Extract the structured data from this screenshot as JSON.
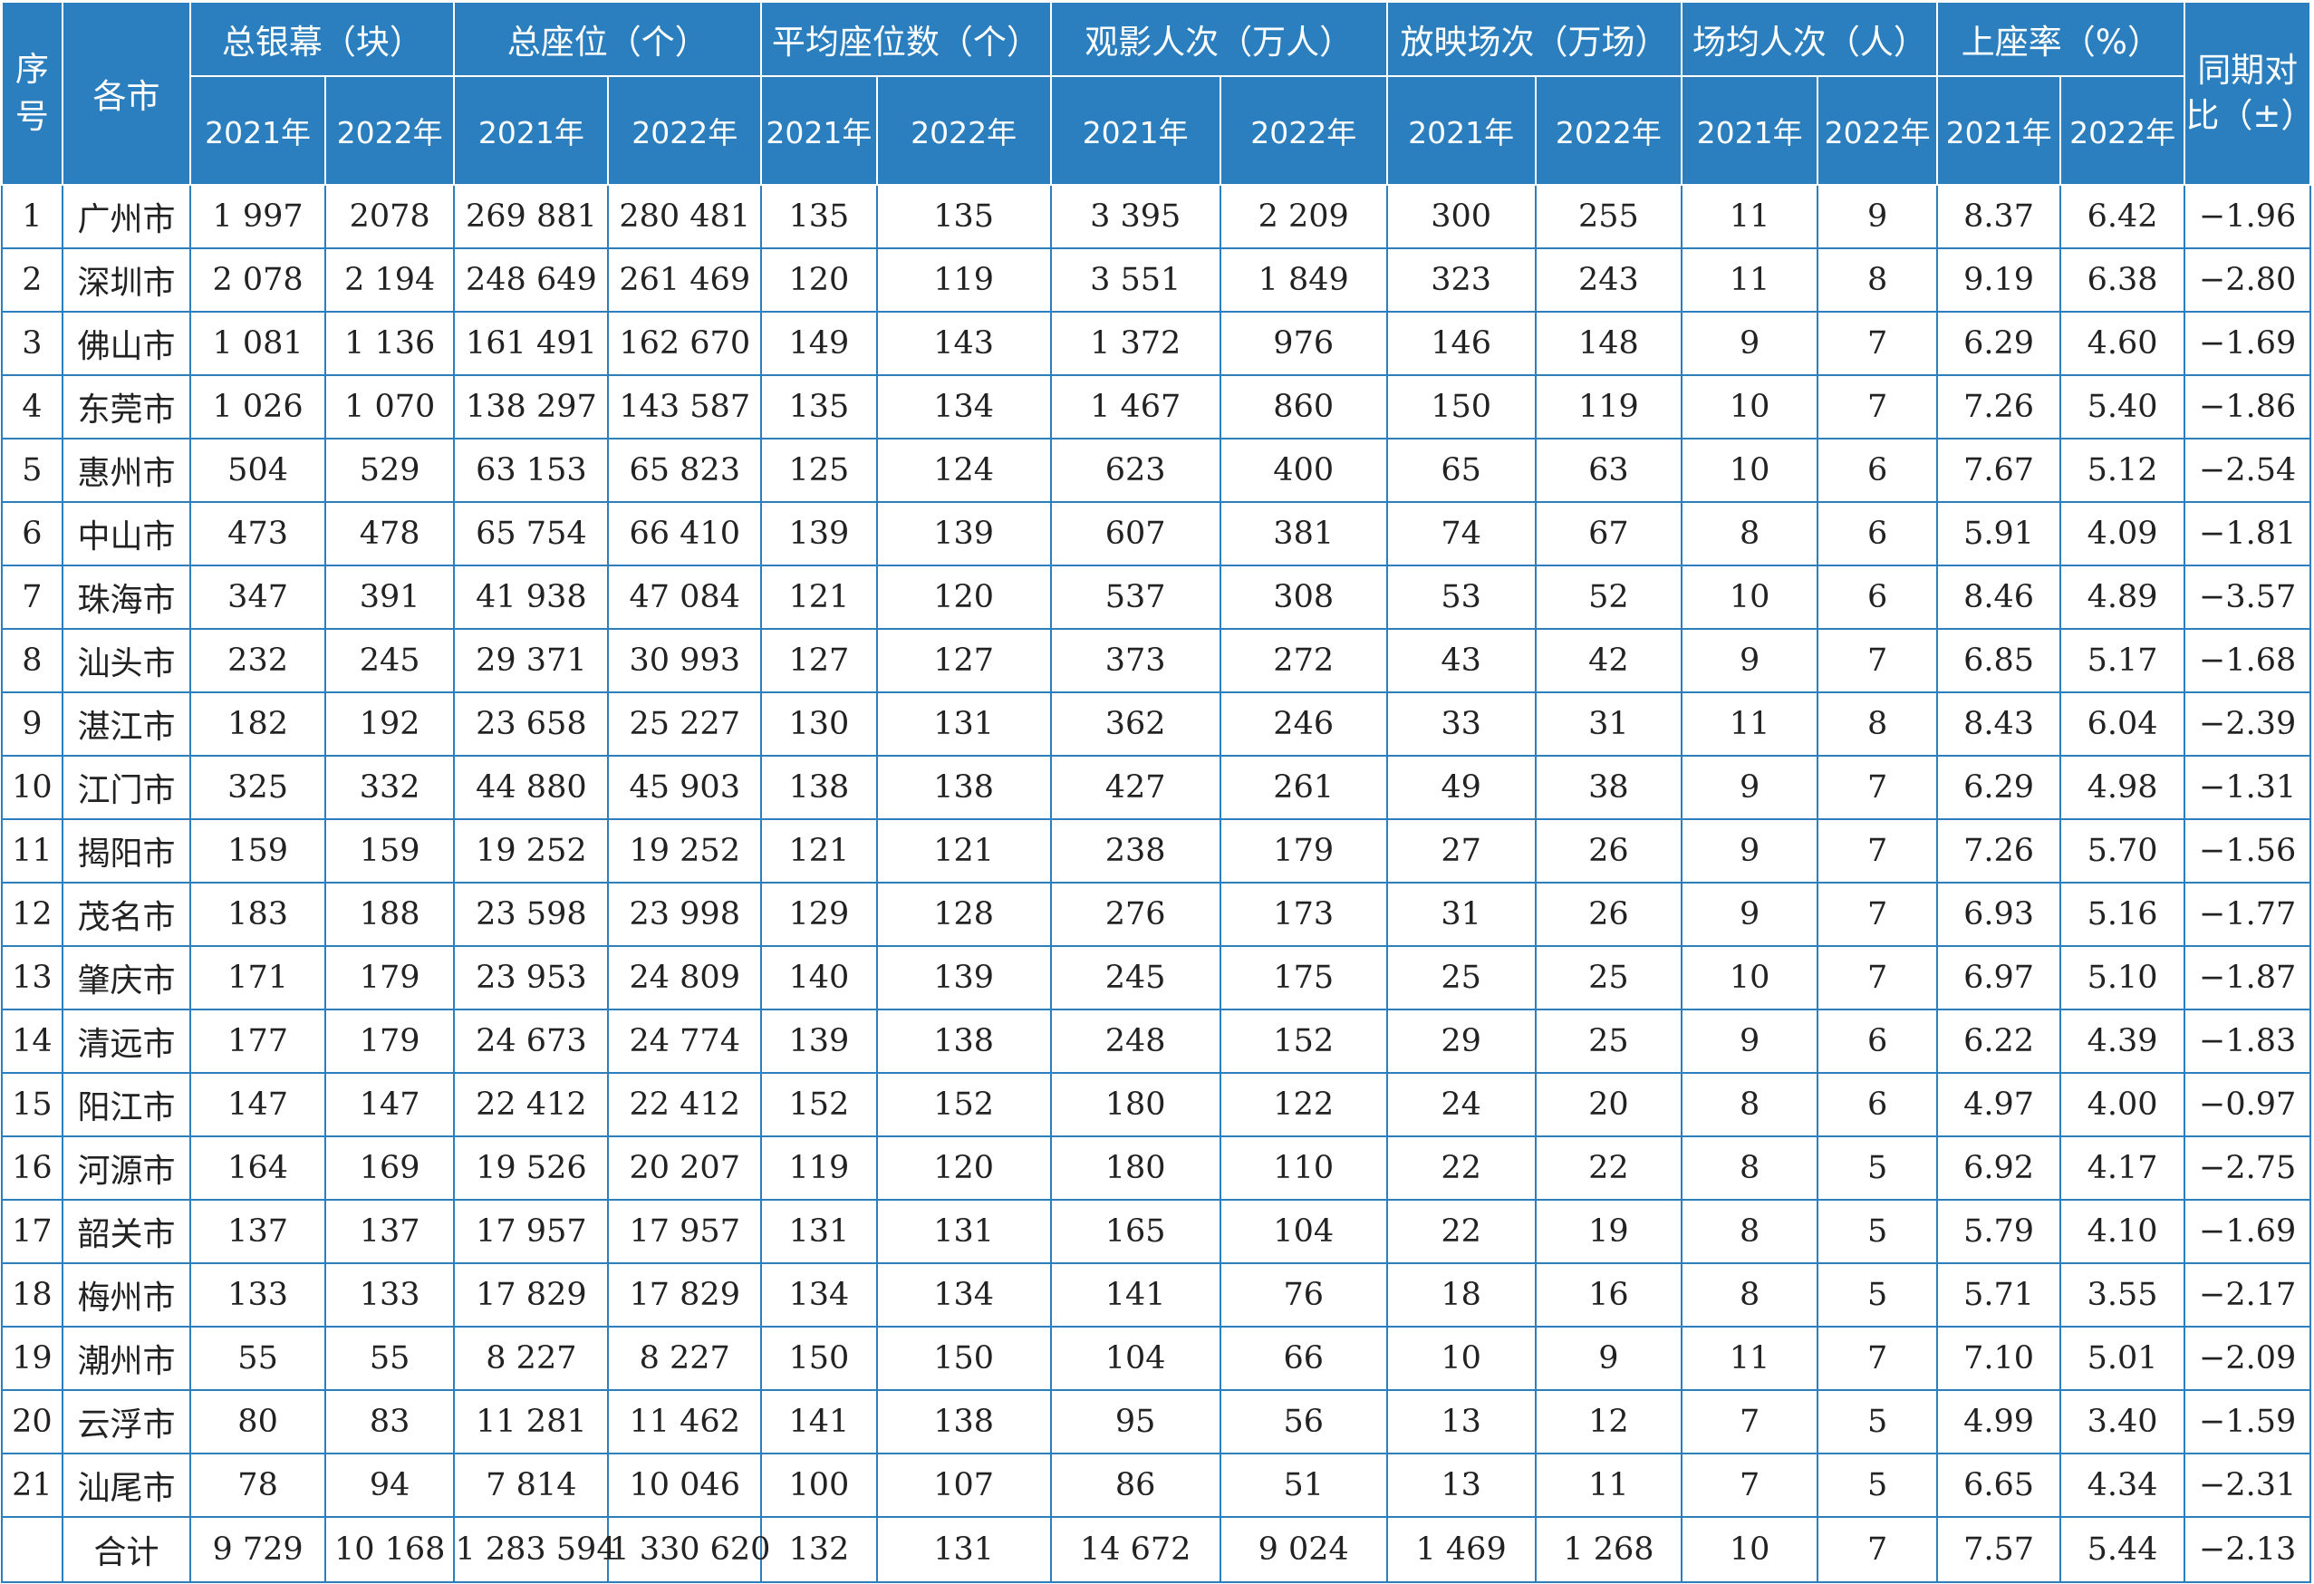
{
  "headers": {
    "seq": "序号",
    "city": "各市",
    "groups": [
      "总银幕（块）",
      "总座位（个）",
      "平均座位数（个）",
      "观影人次（万人）",
      "放映场次（万场）",
      "场均人次（人）",
      "上座率（%）"
    ],
    "year_2021": "2021年",
    "year_2022": "2022年",
    "yoy": "同期对比（±）"
  },
  "rows": [
    [
      "1",
      "广州市",
      "1 997",
      "2078",
      "269 881",
      "280 481",
      "135",
      "135",
      "3 395",
      "2 209",
      "300",
      "255",
      "11",
      "9",
      "8.37",
      "6.42",
      "−1.96"
    ],
    [
      "2",
      "深圳市",
      "2 078",
      "2 194",
      "248 649",
      "261 469",
      "120",
      "119",
      "3 551",
      "1 849",
      "323",
      "243",
      "11",
      "8",
      "9.19",
      "6.38",
      "−2.80"
    ],
    [
      "3",
      "佛山市",
      "1 081",
      "1 136",
      "161 491",
      "162 670",
      "149",
      "143",
      "1 372",
      "976",
      "146",
      "148",
      "9",
      "7",
      "6.29",
      "4.60",
      "−1.69"
    ],
    [
      "4",
      "东莞市",
      "1 026",
      "1 070",
      "138 297",
      "143 587",
      "135",
      "134",
      "1 467",
      "860",
      "150",
      "119",
      "10",
      "7",
      "7.26",
      "5.40",
      "−1.86"
    ],
    [
      "5",
      "惠州市",
      "504",
      "529",
      "63 153",
      "65 823",
      "125",
      "124",
      "623",
      "400",
      "65",
      "63",
      "10",
      "6",
      "7.67",
      "5.12",
      "−2.54"
    ],
    [
      "6",
      "中山市",
      "473",
      "478",
      "65 754",
      "66 410",
      "139",
      "139",
      "607",
      "381",
      "74",
      "67",
      "8",
      "6",
      "5.91",
      "4.09",
      "−1.81"
    ],
    [
      "7",
      "珠海市",
      "347",
      "391",
      "41 938",
      "47 084",
      "121",
      "120",
      "537",
      "308",
      "53",
      "52",
      "10",
      "6",
      "8.46",
      "4.89",
      "−3.57"
    ],
    [
      "8",
      "汕头市",
      "232",
      "245",
      "29 371",
      "30 993",
      "127",
      "127",
      "373",
      "272",
      "43",
      "42",
      "9",
      "7",
      "6.85",
      "5.17",
      "−1.68"
    ],
    [
      "9",
      "湛江市",
      "182",
      "192",
      "23 658",
      "25 227",
      "130",
      "131",
      "362",
      "246",
      "33",
      "31",
      "11",
      "8",
      "8.43",
      "6.04",
      "−2.39"
    ],
    [
      "10",
      "江门市",
      "325",
      "332",
      "44 880",
      "45 903",
      "138",
      "138",
      "427",
      "261",
      "49",
      "38",
      "9",
      "7",
      "6.29",
      "4.98",
      "−1.31"
    ],
    [
      "11",
      "揭阳市",
      "159",
      "159",
      "19 252",
      "19 252",
      "121",
      "121",
      "238",
      "179",
      "27",
      "26",
      "9",
      "7",
      "7.26",
      "5.70",
      "−1.56"
    ],
    [
      "12",
      "茂名市",
      "183",
      "188",
      "23 598",
      "23 998",
      "129",
      "128",
      "276",
      "173",
      "31",
      "26",
      "9",
      "7",
      "6.93",
      "5.16",
      "−1.77"
    ],
    [
      "13",
      "肇庆市",
      "171",
      "179",
      "23 953",
      "24 809",
      "140",
      "139",
      "245",
      "175",
      "25",
      "25",
      "10",
      "7",
      "6.97",
      "5.10",
      "−1.87"
    ],
    [
      "14",
      "清远市",
      "177",
      "179",
      "24 673",
      "24 774",
      "139",
      "138",
      "248",
      "152",
      "29",
      "25",
      "9",
      "6",
      "6.22",
      "4.39",
      "−1.83"
    ],
    [
      "15",
      "阳江市",
      "147",
      "147",
      "22 412",
      "22 412",
      "152",
      "152",
      "180",
      "122",
      "24",
      "20",
      "8",
      "6",
      "4.97",
      "4.00",
      "−0.97"
    ],
    [
      "16",
      "河源市",
      "164",
      "169",
      "19 526",
      "20 207",
      "119",
      "120",
      "180",
      "110",
      "22",
      "22",
      "8",
      "5",
      "6.92",
      "4.17",
      "−2.75"
    ],
    [
      "17",
      "韶关市",
      "137",
      "137",
      "17 957",
      "17 957",
      "131",
      "131",
      "165",
      "104",
      "22",
      "19",
      "8",
      "5",
      "5.79",
      "4.10",
      "−1.69"
    ],
    [
      "18",
      "梅州市",
      "133",
      "133",
      "17 829",
      "17 829",
      "134",
      "134",
      "141",
      "76",
      "18",
      "16",
      "8",
      "5",
      "5.71",
      "3.55",
      "−2.17"
    ],
    [
      "19",
      "潮州市",
      "55",
      "55",
      "8 227",
      "8 227",
      "150",
      "150",
      "104",
      "66",
      "10",
      "9",
      "11",
      "7",
      "7.10",
      "5.01",
      "−2.09"
    ],
    [
      "20",
      "云浮市",
      "80",
      "83",
      "11 281",
      "11 462",
      "141",
      "138",
      "95",
      "56",
      "13",
      "12",
      "7",
      "5",
      "4.99",
      "3.40",
      "−1.59"
    ],
    [
      "21",
      "汕尾市",
      "78",
      "94",
      "7 814",
      "10 046",
      "100",
      "107",
      "86",
      "51",
      "13",
      "11",
      "7",
      "5",
      "6.65",
      "4.34",
      "−2.31"
    ]
  ],
  "total": [
    "",
    "合计",
    "9 729",
    "10 168",
    "1 283 594",
    "1 330 620",
    "132",
    "131",
    "14 672",
    "9 024",
    "1 469",
    "1 268",
    "10",
    "7",
    "7.57",
    "5.44",
    "−2.13"
  ],
  "colors": {
    "header_bg": "#2b7fbf",
    "header_text": "#ffffff",
    "border": "#2b7fbf",
    "text": "#222222"
  }
}
